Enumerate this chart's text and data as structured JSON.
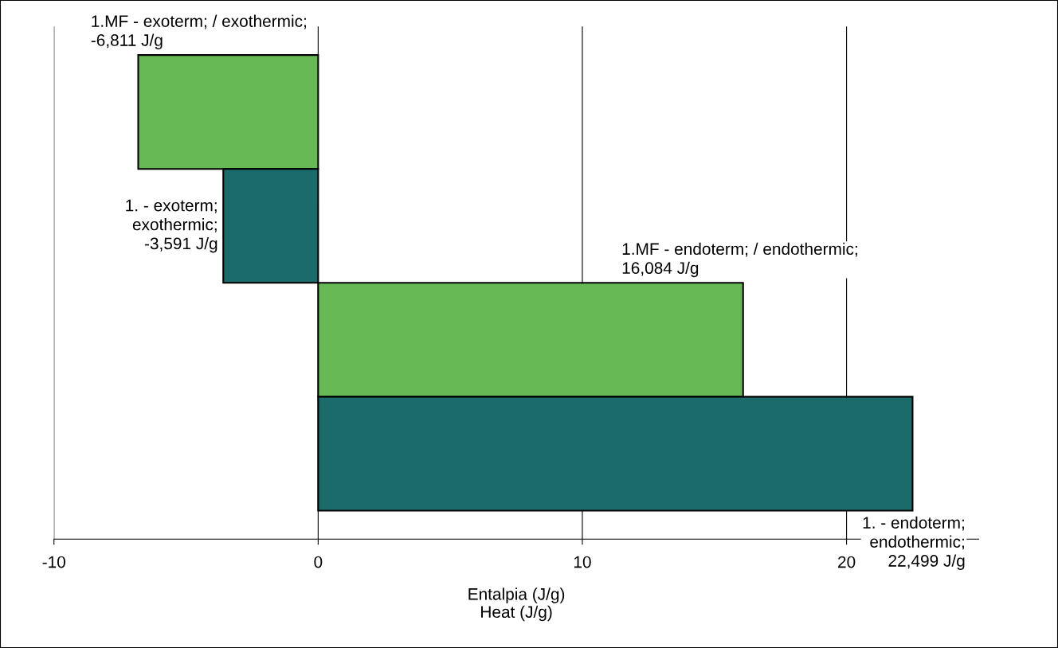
{
  "chart_data": {
    "type": "bar",
    "orientation": "horizontal",
    "categories": [
      null,
      null,
      null,
      null
    ],
    "values": [
      -6.811,
      -3.591,
      16.084,
      22.499
    ],
    "colors": [
      "#66b955",
      "#1b6b6b",
      "#66b955",
      "#1b6b6b"
    ],
    "annotations": [
      "1.MF - exoterm; / exothermic;\n-6,811 J/g",
      "1. - exoterm;\nexothermic;\n-3,591 J/g",
      "1.MF - endoterm; / endothermic;\n16,084 J/g",
      "1. - endoterm;\nendothermic;\n22,499 J/g"
    ],
    "xlabel": "Entalpia (J/g)\nHeat (J/g)",
    "xlim": [
      -10,
      25
    ],
    "xticks": [
      -10,
      0,
      10,
      20
    ],
    "grid": "x"
  }
}
